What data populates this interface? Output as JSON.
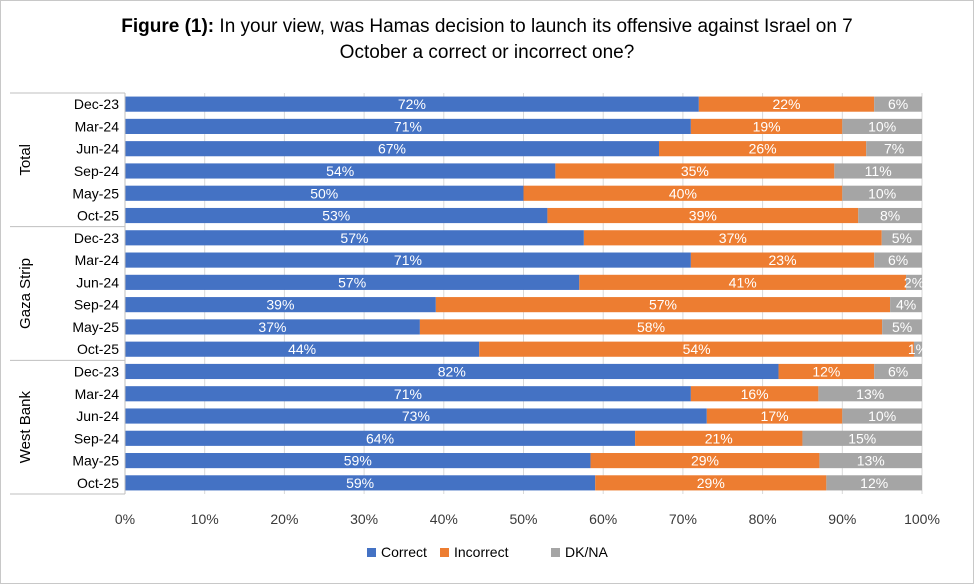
{
  "title": {
    "lead": "Figure (1):",
    "line1": " In your view,  was Hamas decision to launch its offensive against Israel on 7",
    "line2": "October a correct or incorrect one?"
  },
  "colors": {
    "correct": "#4472C4",
    "incorrect": "#ED7D31",
    "dkna": "#A5A5A5"
  },
  "chart_data": {
    "type": "bar",
    "orientation": "horizontal",
    "stacked": "percent",
    "title": "Figure (1): In your view,  was Hamas decision to launch its offensive against Israel on 7 October a correct or incorrect one?",
    "xlim": [
      0,
      100
    ],
    "x_ticks": [
      "0%",
      "10%",
      "20%",
      "30%",
      "40%",
      "50%",
      "60%",
      "70%",
      "80%",
      "90%",
      "100%"
    ],
    "legend_position": "bottom",
    "grid": true,
    "series_names": [
      "Correct",
      "Incorrect",
      "DK/NA"
    ],
    "groups": [
      {
        "name": "Total",
        "categories": [
          "Dec-23",
          "Mar-24",
          "Jun-24",
          "Sep-24",
          "May-25",
          "Oct-25"
        ],
        "series": [
          {
            "name": "Correct",
            "values": [
              72,
              71,
              67,
              54,
              50,
              53
            ]
          },
          {
            "name": "Incorrect",
            "values": [
              22,
              19,
              26,
              35,
              40,
              39
            ]
          },
          {
            "name": "DK/NA",
            "values": [
              6,
              10,
              7,
              11,
              10,
              8
            ]
          }
        ]
      },
      {
        "name": "Gaza Strip",
        "categories": [
          "Dec-23",
          "Mar-24",
          "Jun-24",
          "Sep-24",
          "May-25",
          "Oct-25"
        ],
        "series": [
          {
            "name": "Correct",
            "values": [
              57,
              71,
              57,
              39,
              37,
              44
            ]
          },
          {
            "name": "Incorrect",
            "values": [
              37,
              23,
              41,
              57,
              58,
              54
            ]
          },
          {
            "name": "DK/NA",
            "values": [
              5,
              6,
              2,
              4,
              5,
              1
            ]
          }
        ]
      },
      {
        "name": "West Bank",
        "categories": [
          "Dec-23",
          "Mar-24",
          "Jun-24",
          "Sep-24",
          "May-25",
          "Oct-25"
        ],
        "series": [
          {
            "name": "Correct",
            "values": [
              82,
              71,
              73,
              64,
              59,
              59
            ]
          },
          {
            "name": "Incorrect",
            "values": [
              12,
              16,
              17,
              21,
              29,
              29
            ]
          },
          {
            "name": "DK/NA",
            "values": [
              6,
              13,
              10,
              15,
              13,
              12
            ]
          }
        ]
      }
    ]
  }
}
